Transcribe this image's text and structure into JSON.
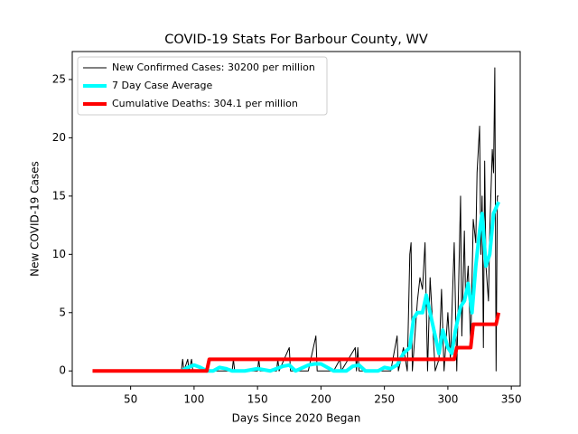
{
  "chart_data": {
    "type": "line",
    "title": "COVID-19 Stats For Barbour County, WV",
    "x_label": "Days Since 2020 Began",
    "y_label": "New COVID-19 Cases",
    "xlim": [
      4,
      357
    ],
    "ylim": [
      -1.3,
      27.4
    ],
    "xticks": [
      50,
      100,
      150,
      200,
      250,
      300,
      350
    ],
    "yticks": [
      0,
      5,
      10,
      15,
      20,
      25
    ],
    "legend": "upper left",
    "series": [
      {
        "name": "New Confirmed Cases: 30200 per million",
        "color": "#000000",
        "width": 1,
        "x": [
          20,
          90,
          91,
          92,
          95,
          96,
          98,
          99,
          130,
          131,
          132,
          150,
          151,
          152,
          165,
          166,
          167,
          175,
          176,
          190,
          196,
          197,
          210,
          215,
          216,
          227,
          228,
          229,
          230,
          255,
          260,
          261,
          265,
          268,
          270,
          271,
          272,
          276,
          278,
          280,
          282,
          284,
          286,
          288,
          290,
          293,
          295,
          297,
          300,
          302,
          305,
          307,
          310,
          311,
          313,
          314,
          316,
          318,
          320,
          322,
          323,
          325,
          326,
          327,
          328,
          329,
          330,
          332,
          333,
          335,
          336,
          337,
          338,
          339,
          340
        ],
        "values": [
          0,
          0,
          1,
          0,
          1,
          0,
          1,
          0,
          0,
          1,
          0,
          0,
          1,
          0,
          0,
          1,
          0,
          2,
          0,
          0,
          3,
          0,
          0,
          1,
          0,
          2,
          0,
          2,
          0,
          0,
          3,
          0,
          2,
          0,
          10,
          11,
          0,
          6,
          8,
          7,
          11,
          0,
          8,
          4,
          0,
          1,
          7,
          0,
          5,
          1,
          11,
          0,
          15,
          3,
          12,
          6,
          9,
          2,
          13,
          11,
          17,
          21,
          10,
          15,
          2,
          18,
          9,
          6,
          12,
          19,
          17,
          26,
          0,
          15,
          15
        ]
      },
      {
        "name": "7 Day Case Average",
        "color": "#00ffff",
        "width": 4,
        "x": [
          90,
          95,
          100,
          105,
          110,
          115,
          120,
          125,
          130,
          140,
          150,
          160,
          170,
          175,
          180,
          190,
          195,
          200,
          205,
          210,
          220,
          225,
          230,
          235,
          245,
          250,
          255,
          260,
          265,
          270,
          273,
          276,
          280,
          283,
          286,
          290,
          293,
          296,
          300,
          303,
          306,
          310,
          313,
          316,
          319,
          322,
          325,
          327,
          330,
          333,
          336,
          340
        ],
        "values": [
          0,
          0.3,
          0.5,
          0.3,
          0,
          0,
          0.3,
          0.2,
          0,
          0,
          0.2,
          0,
          0.4,
          0.5,
          0,
          0.5,
          0.6,
          0.6,
          0.3,
          0,
          0,
          0.4,
          0.5,
          0,
          0,
          0.3,
          0.2,
          0.5,
          1.5,
          2,
          4.5,
          5,
          5,
          6.5,
          5,
          3,
          1.5,
          3.5,
          2,
          1.5,
          3.5,
          5.5,
          6,
          7.5,
          5,
          9,
          12,
          13.5,
          9,
          10,
          13.5,
          14.5
        ]
      },
      {
        "name": "Cumulative Deaths: 304.1 per million",
        "color": "#ff0000",
        "width": 4,
        "x": [
          20,
          110,
          112,
          305,
          307,
          318,
          320,
          338,
          340
        ],
        "values": [
          0,
          0,
          1,
          1,
          2,
          2,
          4,
          4,
          5
        ]
      }
    ]
  }
}
